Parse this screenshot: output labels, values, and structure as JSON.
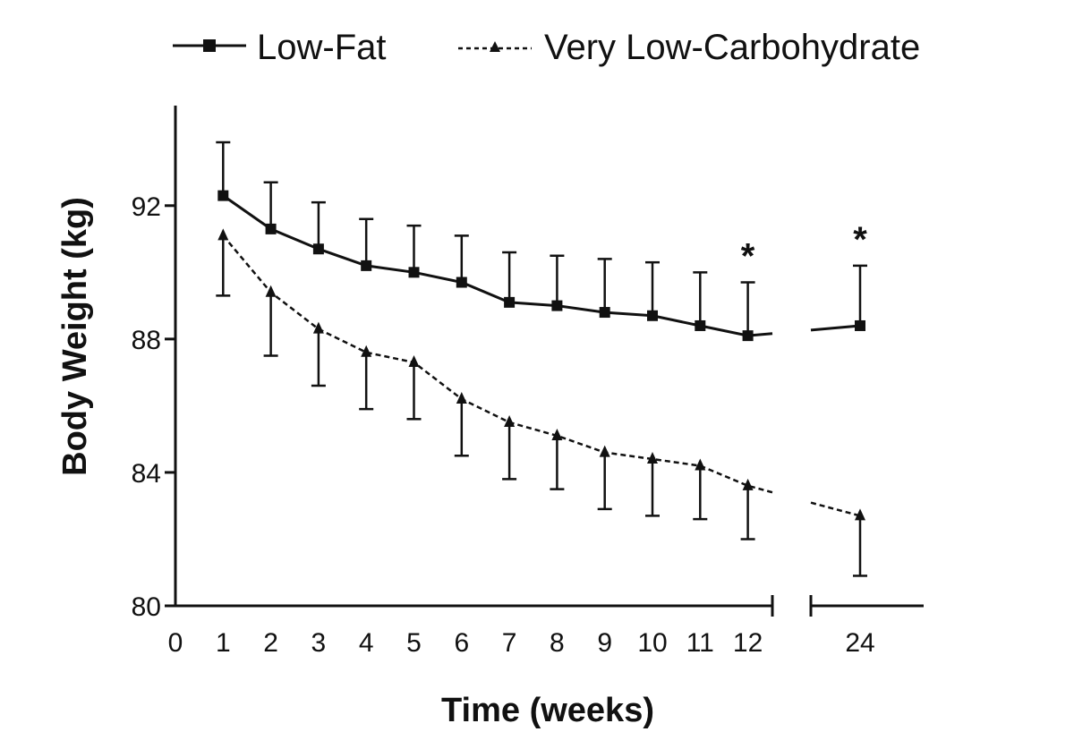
{
  "chart_data": {
    "type": "line",
    "title": "",
    "xlabel": "Time (weeks)",
    "ylabel": "Body Weight (kg)",
    "ylim": [
      80,
      95
    ],
    "yticks": [
      80,
      84,
      88,
      92
    ],
    "xticks": [
      0,
      1,
      2,
      3,
      4,
      5,
      6,
      7,
      8,
      9,
      10,
      11,
      12,
      24
    ],
    "x_axis_break": "between 12 and 24",
    "legend_position": "top",
    "significance_marker": "*",
    "significant_at": [
      12,
      24
    ],
    "x": [
      1,
      2,
      3,
      4,
      5,
      6,
      7,
      8,
      9,
      10,
      11,
      12,
      24
    ],
    "series": [
      {
        "name": "Low-Fat",
        "line_style": "solid",
        "marker": "square",
        "values": [
          92.3,
          91.3,
          90.7,
          90.2,
          90.0,
          89.7,
          89.1,
          89.0,
          88.8,
          88.7,
          88.4,
          88.1,
          88.4
        ],
        "error_upper": [
          1.6,
          1.4,
          1.4,
          1.4,
          1.4,
          1.4,
          1.5,
          1.5,
          1.6,
          1.6,
          1.6,
          1.6,
          1.8
        ]
      },
      {
        "name": "Very Low-Carbohydrate",
        "line_style": "dashed",
        "marker": "triangle",
        "values": [
          91.1,
          89.4,
          88.3,
          87.6,
          87.3,
          86.2,
          85.5,
          85.1,
          84.6,
          84.4,
          84.2,
          83.6,
          82.7
        ],
        "error_lower": [
          1.8,
          1.9,
          1.7,
          1.7,
          1.7,
          1.7,
          1.7,
          1.6,
          1.7,
          1.7,
          1.6,
          1.6,
          1.8
        ]
      }
    ]
  },
  "colors": {
    "ink": "#111111",
    "background": "#ffffff"
  }
}
